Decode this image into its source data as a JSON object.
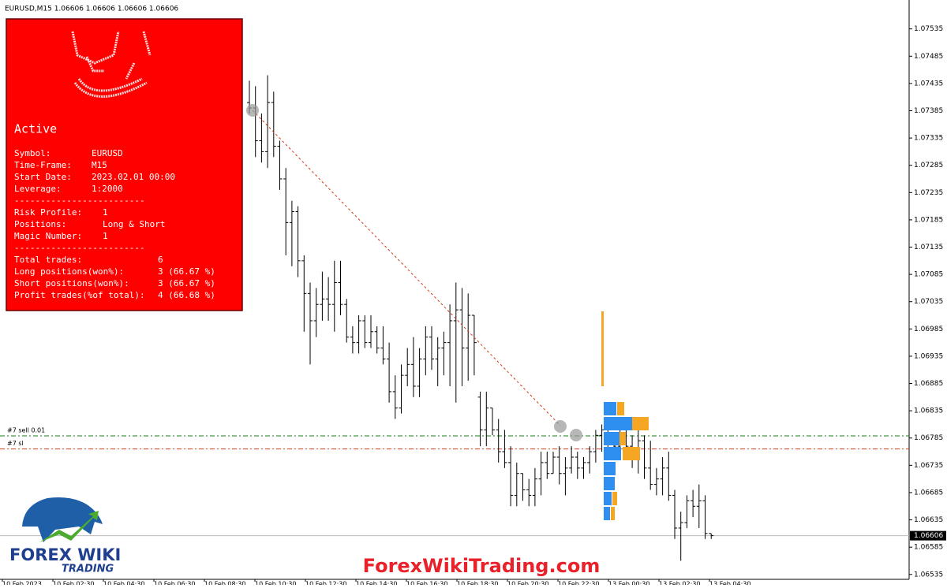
{
  "chart_data": {
    "type": "ohlc",
    "title": "EURUSD,M15  1.06606 1.06606 1.06606 1.06606",
    "open": [
      1.074,
      1.0739,
      1.0733,
      1.0731,
      1.074,
      1.0732,
      1.0726,
      1.0718,
      1.072,
      1.0711,
      1.0705,
      1.07,
      1.0703,
      1.0704,
      1.0703,
      1.0707,
      1.0703,
      1.0697,
      1.0696,
      1.07,
      1.0696,
      1.0698,
      1.0695,
      1.0693,
      1.0687,
      1.0684,
      1.069,
      1.0692,
      1.0688,
      1.0693,
      1.0697,
      1.0693,
      1.0695,
      1.0696,
      1.07,
      1.0702,
      1.0695,
      1.0701,
      1.0686,
      1.068,
      1.0684,
      1.068,
      1.0676,
      1.0674,
      1.0668,
      1.0672,
      1.0669,
      1.0668,
      1.0671,
      1.0674,
      1.0672,
      1.0675,
      1.0672,
      1.0673,
      1.0675,
      1.0673,
      1.0674,
      1.0676,
      1.0679,
      1.068,
      1.0678,
      1.0677,
      1.068,
      1.0677,
      1.0675,
      1.0678,
      1.0673,
      1.067,
      1.0671,
      1.0673,
      1.0668,
      1.0662,
      1.0663,
      1.0667,
      1.0666,
      1.0667,
      1.0661
    ],
    "high": [
      1.0744,
      1.0743,
      1.0738,
      1.0745,
      1.0742,
      1.0733,
      1.0728,
      1.0722,
      1.0721,
      1.0712,
      1.0707,
      1.0706,
      1.0709,
      1.0708,
      1.0711,
      1.0711,
      1.0704,
      1.0699,
      1.0701,
      1.0701,
      1.0701,
      1.0699,
      1.0699,
      1.0696,
      1.069,
      1.0692,
      1.0695,
      1.0697,
      1.0695,
      1.0699,
      1.0699,
      1.0697,
      1.0698,
      1.0703,
      1.0707,
      1.0706,
      1.0705,
      1.0701,
      1.0687,
      1.0687,
      1.0684,
      1.0682,
      1.068,
      1.0677,
      1.0674,
      1.0672,
      1.0671,
      1.0673,
      1.0676,
      1.0676,
      1.0676,
      1.0677,
      1.0675,
      1.0677,
      1.0676,
      1.0675,
      1.0677,
      1.068,
      1.0681,
      1.068,
      1.0679,
      1.0681,
      1.0681,
      1.0679,
      1.0681,
      1.0679,
      1.0678,
      1.0673,
      1.0675,
      1.0676,
      1.0669,
      1.0665,
      1.0668,
      1.0669,
      1.067,
      1.0668,
      1.0661
    ],
    "low": [
      1.0738,
      1.073,
      1.0729,
      1.0728,
      1.073,
      1.0724,
      1.0712,
      1.071,
      1.0708,
      1.0698,
      1.0692,
      1.0697,
      1.07,
      1.07,
      1.0698,
      1.0701,
      1.0696,
      1.0694,
      1.0694,
      1.0695,
      1.0695,
      1.0694,
      1.0692,
      1.0685,
      1.0682,
      1.0683,
      1.0688,
      1.0686,
      1.0686,
      1.069,
      1.0691,
      1.0688,
      1.069,
      1.0688,
      1.0685,
      1.0688,
      1.0689,
      1.069,
      1.0677,
      1.0677,
      1.0679,
      1.0674,
      1.0673,
      1.0666,
      1.0666,
      1.0667,
      1.0666,
      1.0666,
      1.0668,
      1.0671,
      1.0672,
      1.067,
      1.0668,
      1.0672,
      1.0671,
      1.0671,
      1.0672,
      1.0674,
      1.0676,
      1.0676,
      1.0676,
      1.0676,
      1.0675,
      1.0673,
      1.0672,
      1.0671,
      1.0669,
      1.0668,
      1.0668,
      1.0667,
      1.066,
      1.0656,
      1.0662,
      1.0664,
      1.0662,
      1.066,
      1.066
    ],
    "close": [
      1.0739,
      1.0733,
      1.0731,
      1.074,
      1.0732,
      1.0726,
      1.0718,
      1.072,
      1.0711,
      1.0705,
      1.07,
      1.0703,
      1.0704,
      1.0703,
      1.0707,
      1.0703,
      1.0697,
      1.0696,
      1.07,
      1.0696,
      1.0698,
      1.0695,
      1.0693,
      1.0687,
      1.0684,
      1.069,
      1.0692,
      1.0688,
      1.0693,
      1.0697,
      1.0693,
      1.0695,
      1.0696,
      1.07,
      1.0702,
      1.0695,
      1.0701,
      1.0696,
      1.068,
      1.0684,
      1.068,
      1.0676,
      1.0674,
      1.0668,
      1.0672,
      1.0669,
      1.0668,
      1.0671,
      1.0674,
      1.0672,
      1.0675,
      1.0672,
      1.0673,
      1.0675,
      1.0673,
      1.0674,
      1.0676,
      1.0679,
      1.068,
      1.0678,
      1.0677,
      1.068,
      1.0677,
      1.0675,
      1.0678,
      1.0673,
      1.067,
      1.0671,
      1.0673,
      1.0668,
      1.0662,
      1.0663,
      1.0667,
      1.0666,
      1.0667,
      1.0661,
      1.06606
    ],
    "ylim": [
      1.06526,
      1.07588
    ],
    "yticks": [
      1.07535,
      1.07485,
      1.07435,
      1.07385,
      1.07335,
      1.07285,
      1.07235,
      1.07185,
      1.07135,
      1.07085,
      1.07035,
      1.06985,
      1.06935,
      1.06885,
      1.06835,
      1.06785,
      1.06735,
      1.06685,
      1.06635,
      1.06585,
      1.06535
    ],
    "current_price": 1.06606,
    "xlabels": [
      "10 Feb 2023",
      "10 Feb 02:30",
      "10 Feb 04:30",
      "10 Feb 06:30",
      "10 Feb 08:30",
      "10 Feb 10:30",
      "10 Feb 12:30",
      "10 Feb 14:30",
      "10 Feb 16:30",
      "10 Feb 18:30",
      "10 Feb 20:30",
      "10 Feb 22:30",
      "13 Feb 00:30",
      "13 Feb 02:30",
      "13 Feb 04:30"
    ],
    "levels": [
      {
        "name": "#7 sell 0.01",
        "value": 1.06789,
        "color": "#1a7a1a"
      },
      {
        "name": "#7 sl",
        "value": 1.06765,
        "color": "#d23a1a"
      }
    ]
  },
  "panel": {
    "status": "Active",
    "rows": [
      [
        "Symbol:",
        "EURUSD"
      ],
      [
        "Time-Frame:",
        "M15"
      ],
      [
        "Start Date:",
        "2023.02.01 00:00"
      ],
      [
        "Leverage:",
        "1:2000"
      ],
      [
        "-------------------------",
        ""
      ],
      [
        "Risk Profile:",
        "1"
      ],
      [
        "Positions:",
        "Long & Short"
      ],
      [
        "Magic Number:",
        "1"
      ],
      [
        "-------------------------",
        ""
      ],
      [
        "Total trades:",
        "6"
      ],
      [
        "Long positions(won%):",
        "3 (66.67 %)"
      ],
      [
        "Short positions(won%):",
        "3 (66.67 %)"
      ],
      [
        "Profit trades(%of total):",
        "4 (66.68 %)"
      ]
    ]
  },
  "logo": {
    "line1": "FOREX WIKI",
    "line2": "TRADING"
  },
  "watermark": "ForexWikiTrading.com"
}
